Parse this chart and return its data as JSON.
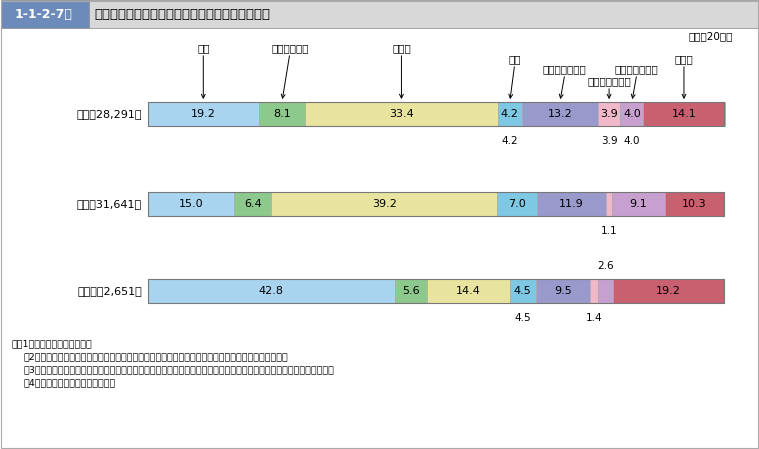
{
  "title_box": "1-1-2-7図",
  "title_main": "傷害・暴行・脅迫　認知件数の発生場所別構成比",
  "year_label": "（平成20年）",
  "rows": [
    {
      "label": "傷害（28,291）",
      "values": [
        19.2,
        8.1,
        33.4,
        4.2,
        13.2,
        3.9,
        4.0,
        14.1
      ]
    },
    {
      "label": "暴行（31,641）",
      "values": [
        15.0,
        6.4,
        39.2,
        7.0,
        11.9,
        1.1,
        9.1,
        10.3
      ]
    },
    {
      "label": "脅迫　（2,651）",
      "values": [
        42.8,
        5.6,
        14.4,
        4.5,
        9.5,
        1.4,
        2.6,
        19.2
      ]
    }
  ],
  "seg_colors": [
    "#a8d4f0",
    "#8dc98d",
    "#e8e4a0",
    "#7ec8e3",
    "#9999cc",
    "#f0b8c8",
    "#c8a0d0",
    "#c96070"
  ],
  "seg_border": "#aaaaaa",
  "cat_labels": [
    "住宅",
    "駐車（輪）場",
    "道路上",
    "商店",
    "サービス営業店",
    "学校（幼稚園）",
    "公共交通機関等",
    "その他"
  ],
  "notes": [
    "注　1　警察庁の統計による。",
    "　2　「サービス営業店」は，生活環境営業，金融機関等，公営競技場，スポーツ・行楽施設をいう。",
    "　3　「公共交通機関等」は，地下鉄等の列車・航空機・船舶・バス内，駅・その他の鉄道施設，空港及び海港をいう。",
    "　4　（　）内は，実人員である。"
  ],
  "header_bg": "#6d8bba",
  "header_light": "#d8d8d8",
  "background": "#ffffff"
}
